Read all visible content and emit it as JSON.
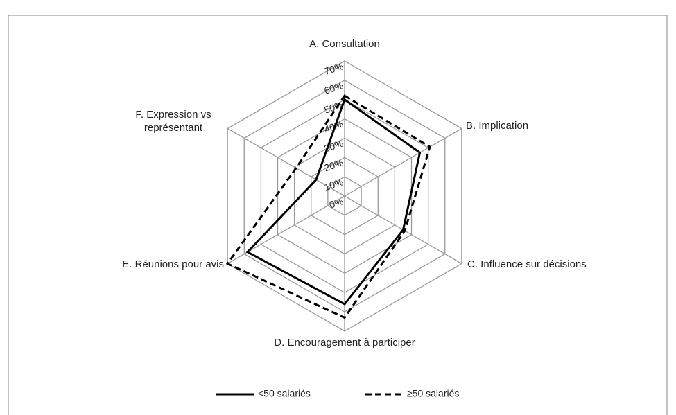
{
  "chart_data": {
    "type": "radar",
    "categories": [
      "A. Consultation",
      "B. Implication",
      "C. Influence sur décisions",
      "D. Encouragement à participer",
      "E. Réunions pour avis",
      "F. Expression vs représentant"
    ],
    "series": [
      {
        "name": "<50 salariés",
        "color": "#000000",
        "dash": "solid",
        "values": [
          50,
          45,
          35,
          56,
          58,
          17
        ]
      },
      {
        "name": "≥50 salariés",
        "color": "#000000",
        "dash": "dashed",
        "values": [
          52,
          51,
          36,
          63,
          70,
          29
        ]
      }
    ],
    "ylim": [
      0,
      70
    ],
    "yticks": [
      {
        "value": 0,
        "label": "0%"
      },
      {
        "value": 10,
        "label": "10%"
      },
      {
        "value": 20,
        "label": "20%"
      },
      {
        "value": 30,
        "label": "30%"
      },
      {
        "value": 40,
        "label": "40%"
      },
      {
        "value": 50,
        "label": "50%"
      },
      {
        "value": 60,
        "label": "60%"
      },
      {
        "value": 70,
        "label": "70%"
      }
    ],
    "grid": true,
    "legend": "bottom"
  }
}
